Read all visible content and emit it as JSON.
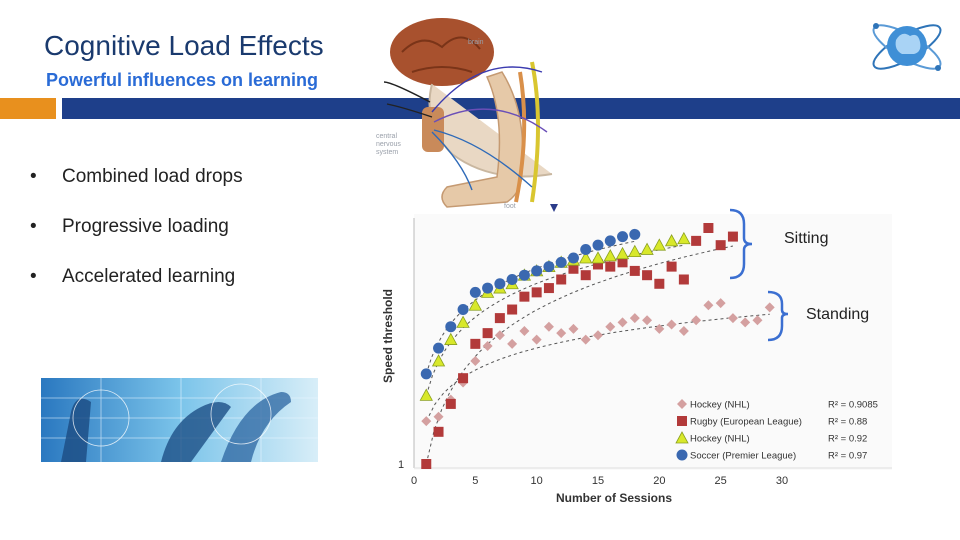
{
  "slide": {
    "title": "Cognitive Load Effects",
    "subtitle": "Powerful influences on learning",
    "bullets": [
      "Combined load drops",
      "Progressive loading",
      "Accelerated learning"
    ],
    "bullet_symbol": "•",
    "annotation_sitting": "Sitting",
    "annotation_standing": "Standing",
    "anatomy_labels": {
      "brain": "brain",
      "cns": [
        "central",
        "nervous",
        "system"
      ],
      "foot": "foot"
    },
    "colors": {
      "orange_bar": "#e8901e",
      "blue_bar": "#1e3f8a",
      "title": "#1a3a6e",
      "subtitle": "#2a6bd6",
      "bracket": "#3b6fd1"
    }
  },
  "chart_data": {
    "type": "scatter",
    "xlabel": "Number of Sessions",
    "ylabel": "Speed threshold",
    "xlim": [
      0,
      30
    ],
    "xticks": [
      0,
      5,
      10,
      15,
      20,
      25,
      30
    ],
    "yticks_labeled": [
      "1"
    ],
    "series": [
      {
        "name": "Hockey (NHL)",
        "marker": "diamond",
        "color": "#d4a0a0",
        "r2": "R² = 0.9085",
        "x": [
          1,
          2,
          3,
          4,
          5,
          6,
          7,
          8,
          9,
          10,
          11,
          12,
          13,
          14,
          15,
          16,
          17,
          18,
          19,
          20,
          21,
          22,
          23,
          24,
          25,
          26,
          27,
          28,
          29
        ],
        "y": [
          0.2,
          0.22,
          0.3,
          0.38,
          0.48,
          0.55,
          0.6,
          0.56,
          0.62,
          0.58,
          0.64,
          0.61,
          0.63,
          0.58,
          0.6,
          0.64,
          0.66,
          0.68,
          0.67,
          0.63,
          0.65,
          0.62,
          0.67,
          0.74,
          0.75,
          0.68,
          0.66,
          0.67,
          0.73
        ]
      },
      {
        "name": "Rugby (European League)",
        "marker": "square",
        "color": "#b23a3a",
        "r2": "R² = 0.88",
        "x": [
          1,
          2,
          3,
          4,
          5,
          6,
          7,
          8,
          9,
          10,
          11,
          12,
          13,
          14,
          15,
          16,
          17,
          18,
          19,
          20,
          21,
          22,
          23,
          24,
          25,
          26
        ],
        "y": [
          0.0,
          0.15,
          0.28,
          0.4,
          0.56,
          0.61,
          0.68,
          0.72,
          0.78,
          0.8,
          0.82,
          0.86,
          0.91,
          0.88,
          0.93,
          0.92,
          0.94,
          0.9,
          0.88,
          0.84,
          0.92,
          0.86,
          1.04,
          1.1,
          1.02,
          1.06
        ]
      },
      {
        "name": "Hockey (NHL)",
        "marker": "triangle",
        "color": "#d8e82a",
        "r2": "R² = 0.92",
        "x": [
          1,
          2,
          3,
          4,
          5,
          6,
          7,
          8,
          9,
          10,
          11,
          12,
          13,
          14,
          15,
          16,
          17,
          18,
          19,
          20,
          21,
          22
        ],
        "y": [
          0.32,
          0.48,
          0.58,
          0.66,
          0.74,
          0.8,
          0.82,
          0.84,
          0.88,
          0.9,
          0.92,
          0.94,
          0.95,
          0.96,
          0.96,
          0.97,
          0.98,
          0.99,
          1.0,
          1.02,
          1.04,
          1.05
        ]
      },
      {
        "name": "Soccer (Premier League)",
        "marker": "circle",
        "color": "#3a68b0",
        "r2": "R² = 0.97",
        "x": [
          1,
          2,
          3,
          4,
          5,
          6,
          7,
          8,
          9,
          10,
          11,
          12,
          13,
          14,
          15,
          16,
          17,
          18
        ],
        "y": [
          0.42,
          0.54,
          0.64,
          0.72,
          0.8,
          0.82,
          0.84,
          0.86,
          0.88,
          0.9,
          0.92,
          0.94,
          0.96,
          1.0,
          1.02,
          1.04,
          1.06,
          1.07
        ]
      }
    ]
  }
}
